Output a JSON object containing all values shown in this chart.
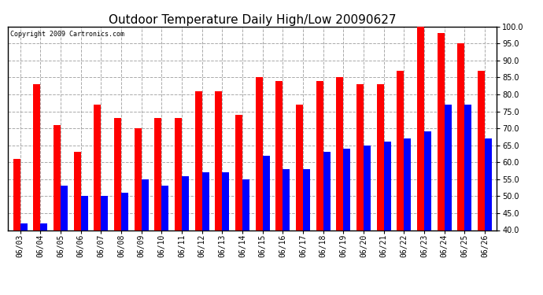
{
  "title": "Outdoor Temperature Daily High/Low 20090627",
  "copyright": "Copyright 2009 Cartronics.com",
  "dates": [
    "06/03",
    "06/04",
    "06/05",
    "06/06",
    "06/07",
    "06/08",
    "06/09",
    "06/10",
    "06/11",
    "06/12",
    "06/13",
    "06/14",
    "06/15",
    "06/16",
    "06/17",
    "06/18",
    "06/19",
    "06/20",
    "06/21",
    "06/22",
    "06/23",
    "06/24",
    "06/25",
    "06/26"
  ],
  "highs": [
    61,
    83,
    71,
    63,
    77,
    73,
    70,
    73,
    73,
    81,
    81,
    74,
    85,
    84,
    77,
    84,
    85,
    83,
    83,
    87,
    100,
    98,
    95,
    87
  ],
  "lows": [
    42,
    42,
    53,
    50,
    50,
    51,
    55,
    53,
    56,
    57,
    57,
    55,
    62,
    58,
    58,
    63,
    64,
    65,
    66,
    67,
    69,
    77,
    77,
    67
  ],
  "high_color": "#ff0000",
  "low_color": "#0000ff",
  "background_color": "#ffffff",
  "grid_color": "#aaaaaa",
  "ylim": [
    40,
    100
  ],
  "yticks": [
    40,
    45,
    50,
    55,
    60,
    65,
    70,
    75,
    80,
    85,
    90,
    95,
    100
  ],
  "title_fontsize": 11,
  "tick_fontsize": 7,
  "bar_width": 0.35,
  "fig_width": 6.9,
  "fig_height": 3.75,
  "dpi": 100
}
